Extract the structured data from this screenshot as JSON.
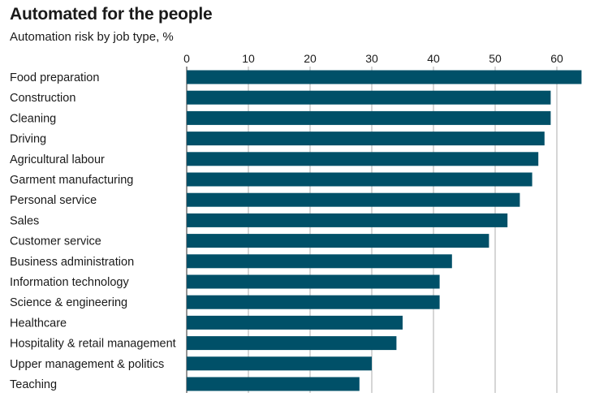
{
  "chart_data": {
    "type": "bar",
    "orientation": "horizontal",
    "title": "Automated for the people",
    "subtitle": "Automation risk by job type, %",
    "xlabel": "",
    "ylabel": "",
    "xlim": [
      0,
      64
    ],
    "ticks": [
      0,
      10,
      20,
      30,
      40,
      50,
      60
    ],
    "grid": true,
    "bar_color": "#005068",
    "categories": [
      "Food preparation",
      "Construction",
      "Cleaning",
      "Driving",
      "Agricultural labour",
      "Garment manufacturing",
      "Personal service",
      "Sales",
      "Customer service",
      "Business administration",
      "Information technology",
      "Science & engineering",
      "Healthcare",
      "Hospitality & retail management",
      "Upper management & politics",
      "Teaching"
    ],
    "values": [
      64,
      59,
      59,
      58,
      57,
      56,
      54,
      52,
      49,
      43,
      41,
      41,
      35,
      34,
      30,
      28
    ]
  }
}
